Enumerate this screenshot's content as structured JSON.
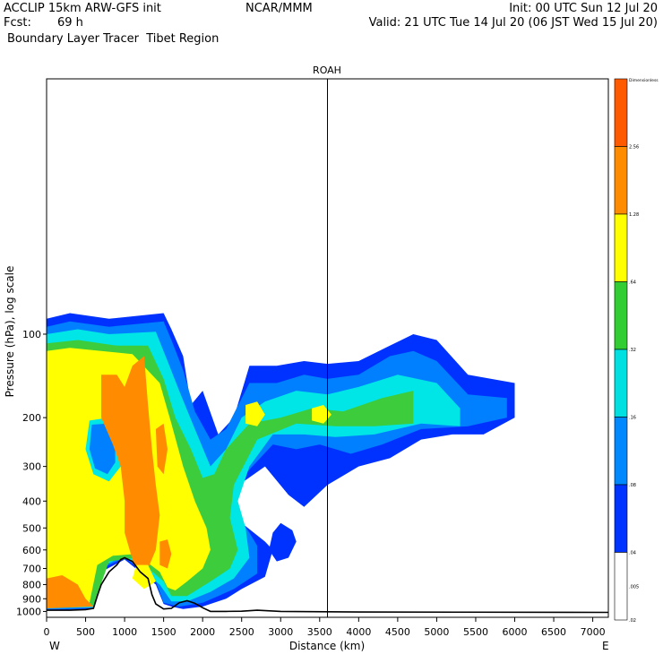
{
  "header": {
    "model": "ACCLIP 15km ARW-GFS init",
    "fcst_label": "Fcst:",
    "fcst_value": "69 h",
    "product": "Boundary Layer Tracer  Tibet Region",
    "center": "NCAR/MMM",
    "init": "Init: 00 UTC Sun 12 Jul 20",
    "valid": "Valid: 21 UTC Tue 14 Jul 20 (06 JST Wed 15 Jul 20)"
  },
  "chart_data": {
    "type": "heatmap",
    "title": "ROAH",
    "xlabel": "Distance (km)",
    "ylabel": "Pressure (hPa), log scale",
    "xlim": [
      0,
      7200
    ],
    "ylim": [
      1050,
      12
    ],
    "y_scale": "log",
    "x_ticks": [
      0,
      500,
      1000,
      1500,
      2000,
      2500,
      3000,
      3500,
      4000,
      4500,
      5000,
      5500,
      6000,
      6500,
      7000
    ],
    "y_ticks": [
      100,
      200,
      300,
      400,
      500,
      600,
      700,
      800,
      900,
      1000
    ],
    "x_end_labels": {
      "left": "W",
      "right": "E"
    },
    "marker_x": 3600,
    "colorbar": {
      "levels": [
        "Dimensionless",
        "2.56",
        "1.28",
        ".64",
        ".32",
        ".16",
        ".08",
        ".04",
        ".02",
        ".01",
        ".005"
      ],
      "colors": [
        "#ff5a00",
        "#ff8c00",
        "#ffff00",
        "#32cd32",
        "#00e0e0",
        "#0088ff",
        "#0033ff",
        "#ffffff"
      ]
    },
    "color_classes": {
      "blue": "#0032ff",
      "lblue": "#0080ff",
      "cyan": "#00e6e6",
      "green": "#3ccc3c",
      "yellow": "#ffff00",
      "orange": "#ff8c00"
    },
    "regions": [
      {
        "cls": "blue",
        "pts": [
          [
            0,
            88
          ],
          [
            300,
            84
          ],
          [
            800,
            88
          ],
          [
            1500,
            84
          ],
          [
            1600,
            96
          ],
          [
            1750,
            120
          ],
          [
            1850,
            180
          ],
          [
            2000,
            160
          ],
          [
            2200,
            230
          ],
          [
            2400,
            200
          ],
          [
            2600,
            130
          ],
          [
            2950,
            130
          ],
          [
            3300,
            125
          ],
          [
            3600,
            128
          ],
          [
            4000,
            125
          ],
          [
            4400,
            110
          ],
          [
            4700,
            100
          ],
          [
            5000,
            105
          ],
          [
            5400,
            140
          ],
          [
            5700,
            145
          ],
          [
            6000,
            150
          ],
          [
            6000,
            200
          ],
          [
            5600,
            230
          ],
          [
            5200,
            230
          ],
          [
            4800,
            240
          ],
          [
            4400,
            280
          ],
          [
            4000,
            300
          ],
          [
            3600,
            350
          ],
          [
            3300,
            420
          ],
          [
            3100,
            380
          ],
          [
            2800,
            300
          ],
          [
            2400,
            360
          ],
          [
            2300,
            400
          ],
          [
            2500,
            480
          ],
          [
            2800,
            560
          ],
          [
            2900,
            600
          ],
          [
            2800,
            750
          ],
          [
            2500,
            830
          ],
          [
            2300,
            900
          ],
          [
            2000,
            960
          ],
          [
            1750,
            980
          ],
          [
            1600,
            960
          ],
          [
            1500,
            940
          ],
          [
            1400,
            800
          ],
          [
            1000,
            650
          ],
          [
            700,
            720
          ],
          [
            600,
            980
          ],
          [
            0,
            990
          ]
        ]
      },
      {
        "cls": "blue",
        "pts": [
          [
            2900,
            520
          ],
          [
            3000,
            480
          ],
          [
            3150,
            510
          ],
          [
            3200,
            560
          ],
          [
            3100,
            640
          ],
          [
            2950,
            660
          ],
          [
            2850,
            600
          ]
        ]
      },
      {
        "cls": "lblue",
        "pts": [
          [
            0,
            94
          ],
          [
            300,
            90
          ],
          [
            800,
            94
          ],
          [
            1500,
            90
          ],
          [
            1600,
            105
          ],
          [
            1750,
            135
          ],
          [
            1900,
            190
          ],
          [
            2100,
            240
          ],
          [
            2300,
            220
          ],
          [
            2600,
            150
          ],
          [
            2950,
            150
          ],
          [
            3300,
            140
          ],
          [
            3600,
            145
          ],
          [
            4000,
            140
          ],
          [
            4400,
            120
          ],
          [
            4700,
            115
          ],
          [
            5000,
            125
          ],
          [
            5400,
            165
          ],
          [
            5900,
            170
          ],
          [
            5900,
            200
          ],
          [
            5400,
            215
          ],
          [
            4800,
            220
          ],
          [
            4300,
            250
          ],
          [
            3900,
            270
          ],
          [
            3500,
            250
          ],
          [
            3200,
            260
          ],
          [
            2900,
            250
          ],
          [
            2500,
            330
          ],
          [
            2400,
            430
          ],
          [
            2600,
            520
          ],
          [
            2700,
            580
          ],
          [
            2700,
            730
          ],
          [
            2400,
            830
          ],
          [
            2200,
            880
          ],
          [
            2000,
            930
          ],
          [
            1700,
            960
          ],
          [
            1500,
            930
          ],
          [
            1400,
            780
          ],
          [
            1000,
            640
          ],
          [
            700,
            700
          ],
          [
            600,
            975
          ],
          [
            0,
            985
          ]
        ]
      },
      {
        "cls": "cyan",
        "pts": [
          [
            0,
            100
          ],
          [
            400,
            96
          ],
          [
            800,
            100
          ],
          [
            1400,
            98
          ],
          [
            1550,
            125
          ],
          [
            1700,
            160
          ],
          [
            1900,
            220
          ],
          [
            2100,
            300
          ],
          [
            2300,
            260
          ],
          [
            2500,
            200
          ],
          [
            2800,
            175
          ],
          [
            3200,
            160
          ],
          [
            3600,
            165
          ],
          [
            4000,
            155
          ],
          [
            4500,
            140
          ],
          [
            5000,
            150
          ],
          [
            5300,
            185
          ],
          [
            5300,
            215
          ],
          [
            4800,
            210
          ],
          [
            4200,
            230
          ],
          [
            3700,
            235
          ],
          [
            3300,
            230
          ],
          [
            2900,
            230
          ],
          [
            2600,
            300
          ],
          [
            2450,
            400
          ],
          [
            2550,
            500
          ],
          [
            2600,
            640
          ],
          [
            2400,
            760
          ],
          [
            2100,
            850
          ],
          [
            1800,
            920
          ],
          [
            1600,
            920
          ],
          [
            1450,
            800
          ],
          [
            1000,
            630
          ],
          [
            700,
            690
          ],
          [
            600,
            965
          ],
          [
            0,
            975
          ]
        ]
      },
      {
        "cls": "green",
        "pts": [
          [
            0,
            108
          ],
          [
            400,
            105
          ],
          [
            900,
            110
          ],
          [
            1300,
            110
          ],
          [
            1500,
            145
          ],
          [
            1650,
            200
          ],
          [
            1850,
            260
          ],
          [
            2000,
            330
          ],
          [
            2150,
            320
          ],
          [
            2300,
            260
          ],
          [
            2600,
            210
          ],
          [
            3000,
            200
          ],
          [
            3400,
            185
          ],
          [
            3800,
            190
          ],
          [
            4300,
            170
          ],
          [
            4700,
            160
          ],
          [
            4700,
            210
          ],
          [
            4200,
            215
          ],
          [
            3700,
            215
          ],
          [
            3200,
            210
          ],
          [
            2700,
            240
          ],
          [
            2400,
            350
          ],
          [
            2350,
            460
          ],
          [
            2450,
            600
          ],
          [
            2350,
            700
          ],
          [
            2100,
            780
          ],
          [
            1800,
            880
          ],
          [
            1600,
            880
          ],
          [
            1500,
            780
          ],
          [
            1150,
            640
          ],
          [
            800,
            660
          ],
          [
            600,
            950
          ],
          [
            0,
            960
          ]
        ]
      },
      {
        "cls": "yellow",
        "pts": [
          [
            0,
            115
          ],
          [
            300,
            112
          ],
          [
            1100,
            118
          ],
          [
            1450,
            150
          ],
          [
            1600,
            210
          ],
          [
            1750,
            300
          ],
          [
            1900,
            400
          ],
          [
            2050,
            500
          ],
          [
            2100,
            600
          ],
          [
            2000,
            700
          ],
          [
            1800,
            780
          ],
          [
            1650,
            840
          ],
          [
            1550,
            820
          ],
          [
            1450,
            720
          ],
          [
            1150,
            620
          ],
          [
            850,
            630
          ],
          [
            650,
            680
          ],
          [
            550,
            930
          ],
          [
            0,
            940
          ]
        ]
      },
      {
        "cls": "yellow",
        "pts": [
          [
            2550,
            180
          ],
          [
            2700,
            175
          ],
          [
            2800,
            195
          ],
          [
            2700,
            215
          ],
          [
            2550,
            210
          ]
        ]
      },
      {
        "cls": "yellow",
        "pts": [
          [
            3400,
            185
          ],
          [
            3550,
            180
          ],
          [
            3650,
            195
          ],
          [
            3550,
            210
          ],
          [
            3400,
            205
          ]
        ]
      },
      {
        "cls": "cyan",
        "pts": [
          [
            550,
            205
          ],
          [
            800,
            200
          ],
          [
            950,
            250
          ],
          [
            950,
            300
          ],
          [
            800,
            340
          ],
          [
            600,
            320
          ],
          [
            500,
            260
          ]
        ]
      },
      {
        "cls": "lblue",
        "pts": [
          [
            580,
            212
          ],
          [
            780,
            210
          ],
          [
            880,
            250
          ],
          [
            880,
            290
          ],
          [
            780,
            320
          ],
          [
            620,
            305
          ],
          [
            550,
            260
          ]
        ]
      },
      {
        "cls": "orange",
        "pts": [
          [
            700,
            140
          ],
          [
            900,
            140
          ],
          [
            1000,
            155
          ],
          [
            1100,
            130
          ],
          [
            1250,
            120
          ],
          [
            1300,
            180
          ],
          [
            1350,
            260
          ],
          [
            1400,
            350
          ],
          [
            1450,
            450
          ],
          [
            1400,
            600
          ],
          [
            1300,
            700
          ],
          [
            1200,
            760
          ],
          [
            1100,
            650
          ],
          [
            1000,
            520
          ],
          [
            1000,
            400
          ],
          [
            950,
            300
          ],
          [
            850,
            250
          ],
          [
            700,
            200
          ]
        ]
      },
      {
        "cls": "orange",
        "pts": [
          [
            1400,
            220
          ],
          [
            1500,
            210
          ],
          [
            1550,
            260
          ],
          [
            1500,
            320
          ],
          [
            1420,
            300
          ]
        ]
      },
      {
        "cls": "orange",
        "pts": [
          [
            1450,
            560
          ],
          [
            1550,
            550
          ],
          [
            1600,
            620
          ],
          [
            1550,
            700
          ],
          [
            1450,
            680
          ]
        ]
      },
      {
        "cls": "orange",
        "pts": [
          [
            0,
            760
          ],
          [
            200,
            740
          ],
          [
            400,
            800
          ],
          [
            500,
            900
          ],
          [
            600,
            960
          ],
          [
            0,
            975
          ]
        ]
      },
      {
        "cls": "yellow",
        "pts": [
          [
            1150,
            680
          ],
          [
            1300,
            680
          ],
          [
            1400,
            780
          ],
          [
            1250,
            830
          ],
          [
            1100,
            760
          ]
        ]
      }
    ],
    "terrain": [
      [
        0,
        990
      ],
      [
        300,
        990
      ],
      [
        500,
        985
      ],
      [
        600,
        975
      ],
      [
        650,
        880
      ],
      [
        700,
        800
      ],
      [
        800,
        720
      ],
      [
        900,
        680
      ],
      [
        950,
        650
      ],
      [
        1000,
        640
      ],
      [
        1100,
        660
      ],
      [
        1200,
        720
      ],
      [
        1300,
        760
      ],
      [
        1350,
        870
      ],
      [
        1400,
        940
      ],
      [
        1500,
        980
      ],
      [
        1600,
        975
      ],
      [
        1700,
        930
      ],
      [
        1800,
        915
      ],
      [
        1900,
        935
      ],
      [
        2000,
        970
      ],
      [
        2100,
        1000
      ],
      [
        2300,
        1000
      ],
      [
        2500,
        998
      ],
      [
        2700,
        990
      ],
      [
        3000,
        1000
      ],
      [
        4000,
        1005
      ],
      [
        7200,
        1008
      ]
    ]
  }
}
